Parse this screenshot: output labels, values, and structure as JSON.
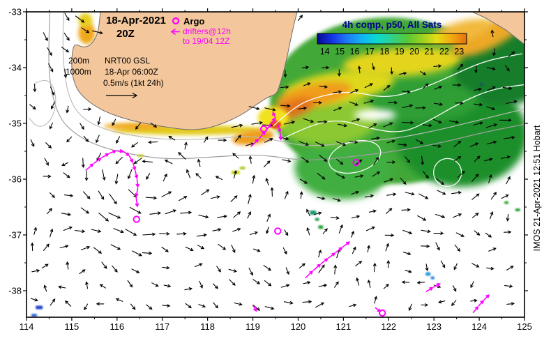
{
  "title": {
    "line1": "18-Apr-2021",
    "line2": "20Z"
  },
  "legend": {
    "argo": "Argo",
    "drifters_line1": "drifters@12h",
    "drifters_line2": "to 19/04 12Z"
  },
  "info": {
    "depth1": "200m",
    "depth2": "1000m",
    "line1": "NRT00 GSL",
    "line2": "18-Apr 06:00Z",
    "line3": "0.5m/s (1kt 24h)"
  },
  "colorbar": {
    "title": "4h comp, p50, All Sats",
    "ticks": [
      14,
      15,
      16,
      17,
      18,
      19,
      20,
      21,
      22,
      23
    ],
    "colors": [
      "#08088e",
      "#1535e8",
      "#1f7bf2",
      "#12b4f5",
      "#0cd9cf",
      "#2fd08a",
      "#55c838",
      "#9ad122",
      "#e3de14",
      "#f2a812",
      "#e56f0e"
    ]
  },
  "axes": {
    "x_ticks": [
      114,
      115,
      116,
      117,
      118,
      119,
      120,
      121,
      122,
      123,
      124,
      125
    ],
    "y_ticks": [
      -33,
      -34,
      -35,
      -36,
      -37,
      -38
    ],
    "lon_min": 114,
    "lon_max": 125,
    "lat_top": -33,
    "lat_bottom": -38.475
  },
  "watermark": "IMOS 21-Apr-2021 12:51 Hobart",
  "observations": {
    "argo_floats": [
      [
        119.24,
        -35.1
      ],
      [
        121.28,
        -35.7
      ],
      [
        116.43,
        -36.72
      ],
      [
        119.55,
        -36.93
      ],
      [
        121.86,
        -38.4
      ]
    ],
    "drifter_tracks": [
      [
        [
          115.3,
          -35.85
        ],
        [
          115.48,
          -35.72
        ],
        [
          115.65,
          -35.62
        ],
        [
          115.82,
          -35.54
        ],
        [
          115.98,
          -35.49
        ],
        [
          116.14,
          -35.5
        ],
        [
          116.27,
          -35.58
        ],
        [
          116.35,
          -35.7
        ],
        [
          116.4,
          -35.84
        ],
        [
          116.44,
          -35.99
        ],
        [
          116.46,
          -36.15
        ],
        [
          116.42,
          -36.32
        ],
        [
          116.45,
          -36.5
        ]
      ],
      [
        [
          118.95,
          -35.42
        ],
        [
          119.13,
          -35.28
        ],
        [
          119.28,
          -35.14
        ],
        [
          119.4,
          -35.01
        ],
        [
          119.5,
          -34.9
        ],
        [
          119.44,
          -34.8
        ]
      ],
      [
        [
          119.56,
          -35.02
        ],
        [
          119.6,
          -35.16
        ],
        [
          119.62,
          -35.3
        ]
      ],
      [
        [
          120.15,
          -37.78
        ],
        [
          120.33,
          -37.64
        ],
        [
          120.5,
          -37.52
        ],
        [
          120.66,
          -37.42
        ],
        [
          120.82,
          -37.32
        ],
        [
          120.98,
          -37.22
        ],
        [
          121.14,
          -37.12
        ]
      ],
      [
        [
          122.82,
          -38.02
        ],
        [
          122.98,
          -37.94
        ],
        [
          123.14,
          -37.87
        ]
      ],
      [
        [
          123.86,
          -38.4
        ],
        [
          123.98,
          -38.28
        ],
        [
          124.1,
          -38.17
        ],
        [
          124.22,
          -38.07
        ]
      ],
      [
        [
          121.7,
          -38.3
        ],
        [
          121.82,
          -38.38
        ]
      ],
      [
        [
          119.0,
          -38.26
        ],
        [
          119.08,
          -38.37
        ]
      ]
    ]
  },
  "colors": {
    "land": "#f3c69b",
    "coast": "#6e6e6e",
    "drifter": "#ff00ff",
    "vector": "#000000",
    "contour_200m": "#bcbcbc",
    "contour_1000m": "#a0a0a0",
    "ssh_contour": "#ffffff"
  }
}
